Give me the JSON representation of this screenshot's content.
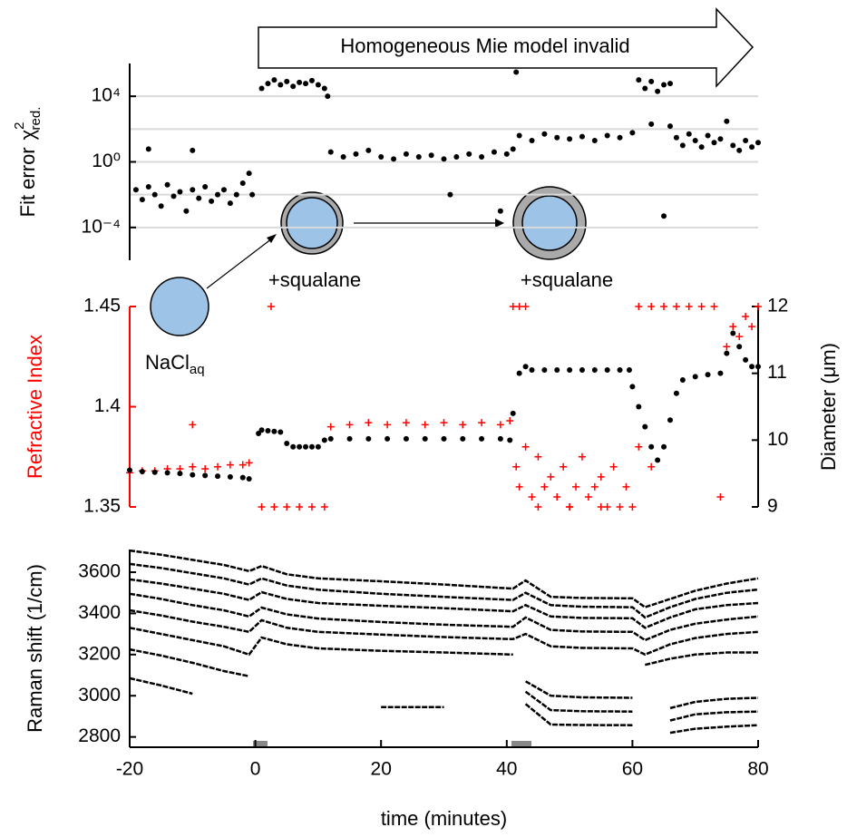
{
  "chart_data": [
    {
      "type": "scatter",
      "ylabel": "Fit error",
      "ylabel_symbol": {
        "text": "χ",
        "sup": "2",
        "sub": "red."
      },
      "log_scale": true,
      "xlim": [
        -20,
        80
      ],
      "ylim": [
        1e-06,
        1000000
      ],
      "yticks": [
        {
          "value": 0.0001,
          "label": "10⁻⁴"
        },
        {
          "value": 1,
          "label": "10⁰"
        },
        {
          "value": 10000,
          "label": "10⁴"
        }
      ],
      "grid_lines": [
        0.0001,
        0.01,
        1,
        100,
        10000
      ],
      "grid": true,
      "annotations": [
        {
          "text": "Homogeneous Mie model invalid"
        },
        {
          "text": "+squalane"
        },
        {
          "text": "+squalane"
        },
        {
          "text": "NaCl",
          "subscript": "aq"
        }
      ],
      "series": [
        {
          "color": "#000000",
          "x": [
            -19,
            -18,
            -17,
            -16,
            -15,
            -14,
            -13,
            -12,
            -11,
            -10,
            -9,
            -8,
            -7,
            -6,
            -5,
            -4,
            -3,
            -2,
            -1,
            -0.5,
            -17,
            -10,
            1,
            2,
            3,
            4,
            5,
            6,
            7,
            8,
            9,
            10,
            11,
            11.5,
            12,
            14,
            16,
            18,
            20,
            22,
            24,
            26,
            28,
            30,
            32,
            34,
            36,
            38,
            40,
            41,
            31,
            39,
            42,
            44,
            46,
            48,
            50,
            52,
            54,
            56,
            58,
            60,
            41.5,
            61,
            62,
            63,
            64,
            65,
            66,
            63,
            66,
            65,
            67,
            68,
            69,
            70,
            71,
            72,
            73,
            74,
            75,
            76,
            77,
            78,
            79,
            80
          ],
          "values": [
            0.02,
            0.005,
            0.03,
            0.01,
            0.002,
            0.04,
            0.008,
            0.015,
            0.001,
            0.02,
            0.006,
            0.03,
            0.004,
            0.01,
            0.02,
            0.003,
            0.01,
            0.05,
            0.2,
            0.01,
            6,
            5,
            30000,
            60000,
            100000,
            50000,
            80000,
            40000,
            70000,
            60000,
            90000,
            50000,
            30000,
            10000,
            4,
            2,
            3,
            5,
            2,
            1.5,
            3,
            2,
            2.5,
            1.5,
            2,
            3,
            2,
            4,
            3,
            6,
            0.01,
            0.001,
            40,
            20,
            50,
            30,
            25,
            35,
            20,
            40,
            30,
            60,
            300000,
            100000,
            30000,
            80000,
            20000,
            50000,
            60000,
            200,
            150,
            0.0005,
            30,
            10,
            50,
            20,
            8,
            40,
            15,
            25,
            300,
            10,
            5,
            20,
            8,
            15
          ]
        }
      ]
    },
    {
      "type": "scatter",
      "ylabel": "Refractive Index",
      "y2label": "Diameter (μm)",
      "ycolor": "#ff0000",
      "xlim": [
        -20,
        80
      ],
      "ylim": [
        1.35,
        1.45
      ],
      "yticks": [
        1.35,
        1.4,
        1.45
      ],
      "y2lim": [
        9,
        12
      ],
      "y2ticks": [
        9,
        10,
        11,
        12
      ],
      "series": [
        {
          "color": "#ff0000",
          "marker": "plus",
          "x": [
            -20,
            -18,
            -16,
            -14,
            -12,
            -10,
            -8,
            -6,
            -4,
            -2,
            -1,
            -10,
            1,
            3,
            5,
            7,
            9,
            11,
            2.5,
            12,
            15,
            18,
            21,
            24,
            27,
            30,
            33,
            36,
            39,
            40.5,
            41,
            42,
            43,
            41.5,
            42,
            43,
            44,
            45,
            46,
            47,
            48,
            49,
            50,
            51,
            52,
            53,
            54,
            55,
            56,
            57,
            58,
            59,
            60,
            45,
            50,
            55,
            61,
            63,
            65,
            67,
            69,
            71,
            73,
            74,
            75,
            76,
            77,
            78,
            79,
            80,
            61,
            63
          ],
          "values": [
            1.367,
            1.368,
            1.368,
            1.369,
            1.369,
            1.37,
            1.369,
            1.37,
            1.371,
            1.371,
            1.372,
            1.391,
            1.35,
            1.35,
            1.35,
            1.35,
            1.35,
            1.35,
            1.45,
            1.39,
            1.391,
            1.392,
            1.391,
            1.392,
            1.391,
            1.392,
            1.391,
            1.392,
            1.391,
            1.393,
            1.45,
            1.45,
            1.45,
            1.37,
            1.36,
            1.38,
            1.355,
            1.375,
            1.36,
            1.365,
            1.355,
            1.37,
            1.35,
            1.36,
            1.375,
            1.355,
            1.36,
            1.365,
            1.35,
            1.37,
            1.35,
            1.36,
            1.35,
            1.35,
            1.35,
            1.35,
            1.45,
            1.45,
            1.45,
            1.45,
            1.45,
            1.45,
            1.45,
            1.355,
            1.43,
            1.44,
            1.435,
            1.445,
            1.44,
            1.45,
            1.38,
            1.37
          ]
        },
        {
          "color": "#000000",
          "marker": "dot",
          "axis": "y2",
          "x": [
            -20,
            -18,
            -16,
            -14,
            -12,
            -10,
            -8,
            -6,
            -4,
            -2,
            -1,
            0.5,
            1,
            2,
            3,
            4,
            5,
            6,
            7,
            8,
            9,
            10,
            11,
            12,
            15,
            18,
            21,
            24,
            27,
            30,
            33,
            36,
            39,
            40.5,
            41,
            42,
            43,
            44,
            46,
            48,
            50,
            52,
            54,
            56,
            58,
            59.5,
            60,
            61,
            62,
            63,
            64,
            65,
            66,
            67,
            68,
            70,
            72,
            74,
            75,
            76,
            77,
            78,
            79,
            80
          ],
          "values": [
            9.55,
            9.53,
            9.52,
            9.51,
            9.5,
            9.48,
            9.47,
            9.46,
            9.45,
            9.44,
            9.42,
            10.1,
            10.15,
            10.14,
            10.13,
            10.12,
            9.95,
            9.9,
            9.9,
            9.9,
            9.9,
            9.9,
            10,
            10.02,
            10.02,
            10.02,
            10.02,
            10.02,
            10.02,
            10.02,
            10.02,
            10.02,
            10.02,
            10,
            10.4,
            11,
            11.1,
            11.05,
            11.05,
            11.05,
            11.05,
            11.05,
            11.05,
            11.05,
            11.05,
            11.05,
            10.8,
            10.5,
            10.2,
            9.9,
            9.7,
            9.9,
            10.3,
            10.7,
            10.9,
            10.95,
            10.98,
            11,
            11.3,
            11.6,
            11.4,
            11.2,
            11.1,
            11.1
          ]
        }
      ]
    },
    {
      "type": "line",
      "ylabel": "Raman shift (1/cm)",
      "xlabel": "time (minutes)",
      "xlim": [
        -20,
        80
      ],
      "xticks": [
        -20,
        0,
        20,
        40,
        60,
        80
      ],
      "ylim": [
        2750,
        3710
      ],
      "yticks": [
        2800,
        3000,
        3200,
        3400,
        3600
      ],
      "x": [
        -20,
        -15,
        -10,
        -5,
        -1,
        1,
        5,
        10,
        20,
        30,
        41,
        43,
        47,
        52,
        60,
        62,
        66,
        70,
        75,
        80
      ],
      "series": [
        {
          "color": "#000000",
          "values": [
            3705,
            3685,
            3660,
            3635,
            3605,
            3630,
            3590,
            3570,
            3556,
            3540,
            3520,
            3560,
            3480,
            3475,
            3473,
            3430,
            3470,
            3510,
            3545,
            3570
          ]
        },
        {
          "color": "#000000",
          "values": [
            3640,
            3620,
            3595,
            3570,
            3540,
            3570,
            3535,
            3515,
            3495,
            3480,
            3465,
            3500,
            3440,
            3432,
            3430,
            3380,
            3430,
            3470,
            3500,
            3516
          ]
        },
        {
          "color": "#000000",
          "values": [
            3565,
            3545,
            3520,
            3495,
            3465,
            3503,
            3470,
            3450,
            3437,
            3425,
            3410,
            3440,
            3385,
            3378,
            3376,
            3330,
            3380,
            3420,
            3440,
            3450
          ]
        },
        {
          "color": "#000000",
          "values": [
            3495,
            3470,
            3440,
            3415,
            3385,
            3428,
            3395,
            3375,
            3358,
            3345,
            3335,
            3380,
            3320,
            3312,
            3310,
            3270,
            3320,
            3350,
            3370,
            3385
          ]
        },
        {
          "color": "#000000",
          "values": [
            3415,
            3390,
            3360,
            3335,
            3310,
            3367,
            3330,
            3310,
            3297,
            3285,
            3275,
            3300,
            3240,
            3232,
            3230,
            3200,
            3250,
            3280,
            3300,
            3310
          ]
        },
        {
          "color": "#000000",
          "values": [
            3330,
            3300,
            3270,
            3240,
            3200,
            3283,
            3250,
            3230,
            3218,
            3210,
            3200,
            null,
            null,
            null,
            null,
            3150,
            3180,
            3200,
            3210,
            3210
          ]
        },
        {
          "color": "#000000",
          "values": [
            3225,
            3195,
            3160,
            3120,
            3095,
            null,
            null,
            null,
            null,
            null,
            null,
            null,
            null,
            null,
            null,
            null,
            null,
            null,
            null,
            null
          ]
        },
        {
          "color": "#000000",
          "values": [
            3085,
            3050,
            3010,
            null,
            null,
            null,
            null,
            null,
            null,
            null,
            null,
            3070,
            3000,
            2992,
            2990,
            null,
            2940,
            2970,
            2985,
            2990
          ]
        },
        {
          "color": "#000000",
          "values": [
            null,
            null,
            null,
            null,
            null,
            null,
            null,
            null,
            null,
            null,
            null,
            3020,
            2930,
            2925,
            2923,
            null,
            2880,
            2910,
            2920,
            2923
          ]
        },
        {
          "color": "#000000",
          "values": [
            null,
            null,
            null,
            null,
            null,
            null,
            null,
            null,
            null,
            null,
            null,
            2960,
            2860,
            2858,
            2857,
            null,
            2820,
            2840,
            2850,
            2857
          ]
        },
        {
          "color": "#000000",
          "values": [
            null,
            null,
            null,
            null,
            null,
            null,
            null,
            null,
            2945,
            2945,
            null,
            null,
            null,
            null,
            null,
            null,
            null,
            null,
            null,
            null
          ]
        }
      ]
    }
  ]
}
